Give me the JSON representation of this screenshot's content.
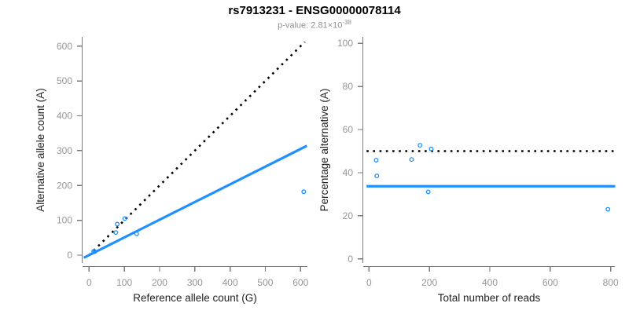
{
  "header": {
    "title": "rs7913231 - ENSG00000078114",
    "p_value_base": "p-value: 2.81×10",
    "p_value_exponent": "-38"
  },
  "colors": {
    "accent_blue": "#1E90FF",
    "reference_line_black": "#000000",
    "axis_gray": "#7A7A7A",
    "tick_label_gray": "#969696",
    "axis_title_dark": "#1F1F1F",
    "subtitle_gray": "#909090"
  },
  "chart_data": [
    {
      "type": "scatter",
      "name": "allele-counts",
      "title": "",
      "xlabel": "Reference allele count (G)",
      "ylabel": "Alternative allele count (A)",
      "xticks": [
        0,
        100,
        200,
        300,
        400,
        500,
        600
      ],
      "yticks": [
        0,
        100,
        200,
        300,
        400,
        500,
        600
      ],
      "xlim": [
        -15,
        618
      ],
      "ylim": [
        -10,
        612
      ],
      "points": [
        [
          13,
          11
        ],
        [
          16,
          10
        ],
        [
          76,
          65
        ],
        [
          80,
          89
        ],
        [
          101,
          105
        ],
        [
          135,
          61
        ],
        [
          609,
          182
        ]
      ],
      "reference_line": {
        "type": "identity",
        "style": "dotted",
        "color": "#000000"
      },
      "fit_line": {
        "type": "slope",
        "slope": 0.508,
        "style": "solid",
        "color": "#1E90FF"
      },
      "marker": "open-circle",
      "grid": false,
      "legend": "none"
    },
    {
      "type": "scatter",
      "name": "percentage-alternative",
      "title": "",
      "xlabel": "Total number of reads",
      "ylabel": "Percentage alternative (A)",
      "xticks": [
        0,
        200,
        400,
        600,
        800
      ],
      "yticks": [
        0,
        20,
        40,
        60,
        80,
        100
      ],
      "xlim": [
        -8,
        815
      ],
      "ylim": [
        0,
        100
      ],
      "points": [
        [
          24,
          45.8
        ],
        [
          26,
          38.5
        ],
        [
          141,
          46.1
        ],
        [
          169,
          52.7
        ],
        [
          206,
          51.0
        ],
        [
          196,
          31.1
        ],
        [
          791,
          23.0
        ]
      ],
      "reference_line": {
        "type": "hline",
        "y": 50,
        "style": "dotted",
        "color": "#000000"
      },
      "fit_line": {
        "type": "hline",
        "y": 33.7,
        "style": "solid",
        "color": "#1E90FF"
      },
      "marker": "open-circle",
      "grid": false,
      "legend": "none"
    }
  ]
}
